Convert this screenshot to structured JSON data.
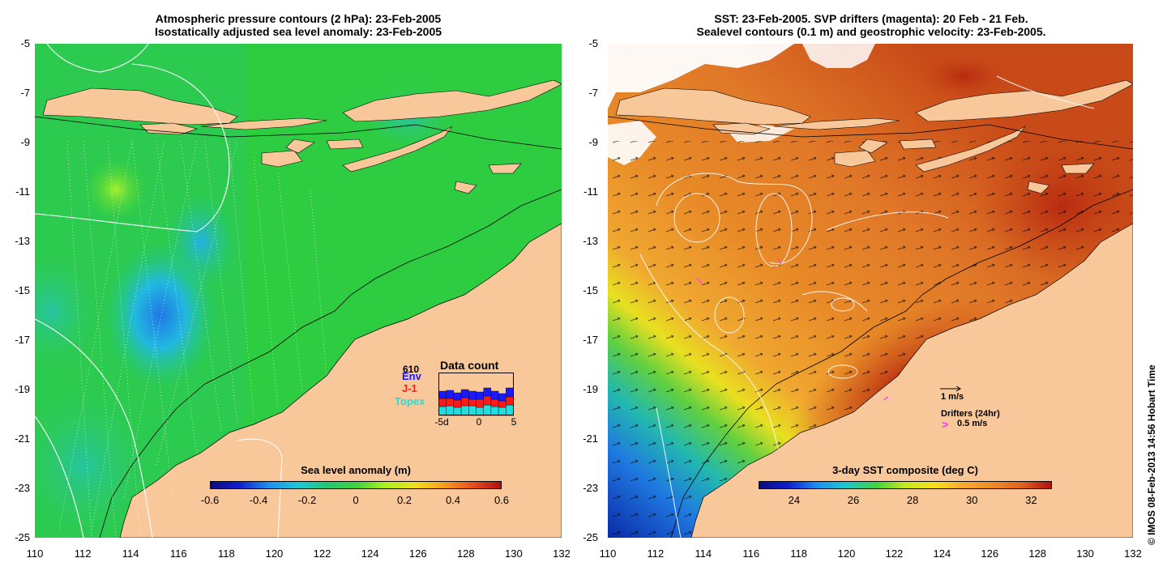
{
  "left_panel": {
    "title_line1": "Atmospheric pressure contours (2 hPa): 23-Feb-2005",
    "title_line2": "Isostatically adjusted sea level anomaly: 23-Feb-2005",
    "colorbar_label": "Sea level anomaly (m)",
    "colorbar_ticks": [
      "-0.6",
      "-0.4",
      "-0.2",
      "0",
      "0.2",
      "0.4",
      "0.6"
    ],
    "colorbar_range": [
      -0.6,
      0.6
    ],
    "inset": {
      "title": "Data count",
      "total": "610",
      "satellites": [
        {
          "name": "Env",
          "color": "#1a1aff"
        },
        {
          "name": "J-1",
          "color": "#ff1a1a"
        },
        {
          "name": "Topex",
          "color": "#22dddd"
        }
      ],
      "x_ticks": [
        "-5d",
        "0",
        "5"
      ]
    }
  },
  "right_panel": {
    "title_line1": "SST: 23-Feb-2005. SVP drifters (magenta): 20 Feb - 21 Feb.",
    "title_line2": "Sealevel contours (0.1 m) and geostrophic velocity: 23-Feb-2005.",
    "colorbar_label": "3-day SST composite (deg C)",
    "colorbar_ticks": [
      "24",
      "26",
      "28",
      "30",
      "32"
    ],
    "colorbar_range": [
      22.8,
      32.7
    ],
    "velocity_scale_label": "1 m/s",
    "drifters_label": "Drifters (24hr)",
    "drifter_scale_label": "0.5 m/s",
    "drifter_color": "#ff33ff"
  },
  "axes": {
    "lat_ticks": [
      "-5",
      "-7",
      "-9",
      "-11",
      "-13",
      "-15",
      "-17",
      "-19",
      "-21",
      "-23",
      "-25"
    ],
    "lon_ticks": [
      "110",
      "112",
      "114",
      "116",
      "118",
      "120",
      "122",
      "124",
      "126",
      "128",
      "130",
      "132"
    ],
    "lat_range": [
      -25,
      -5
    ],
    "lon_range": [
      110,
      132
    ]
  },
  "land_color": "#f9c89a",
  "credit": "© IMOS 08-Feb-2013 14:56 Hobart Time"
}
